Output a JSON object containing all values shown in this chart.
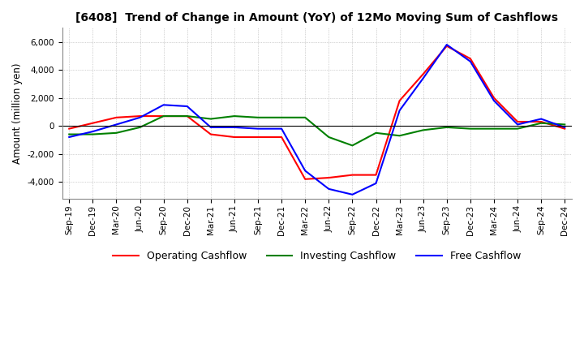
{
  "title": "[6408]  Trend of Change in Amount (YoY) of 12Mo Moving Sum of Cashflows",
  "ylabel": "Amount (million yen)",
  "x_labels": [
    "Sep-19",
    "Dec-19",
    "Mar-20",
    "Jun-20",
    "Sep-20",
    "Dec-20",
    "Mar-21",
    "Jun-21",
    "Sep-21",
    "Dec-21",
    "Mar-22",
    "Jun-22",
    "Sep-22",
    "Dec-22",
    "Mar-23",
    "Jun-23",
    "Sep-23",
    "Dec-23",
    "Mar-24",
    "Jun-24",
    "Sep-24",
    "Dec-24"
  ],
  "operating": [
    -200,
    200,
    600,
    700,
    700,
    700,
    -600,
    -800,
    -800,
    -800,
    -3800,
    -3700,
    -3500,
    -3500,
    1800,
    3700,
    5700,
    4800,
    2000,
    300,
    300,
    -200
  ],
  "investing": [
    -600,
    -600,
    -500,
    -100,
    700,
    700,
    500,
    700,
    600,
    600,
    600,
    -800,
    -1400,
    -500,
    -700,
    -300,
    -100,
    -200,
    -200,
    -200,
    200,
    100
  ],
  "free": [
    -800,
    -400,
    100,
    600,
    1500,
    1400,
    -100,
    -100,
    -200,
    -200,
    -3200,
    -4500,
    -4900,
    -4100,
    1100,
    3400,
    5800,
    4600,
    1800,
    100,
    500,
    -100
  ],
  "operating_color": "#ff0000",
  "investing_color": "#008000",
  "free_color": "#0000ff",
  "ylim": [
    -5200,
    7000
  ],
  "yticks": [
    -4000,
    -2000,
    0,
    2000,
    4000,
    6000
  ],
  "background_color": "#ffffff",
  "grid_color": "#aaaaaa"
}
